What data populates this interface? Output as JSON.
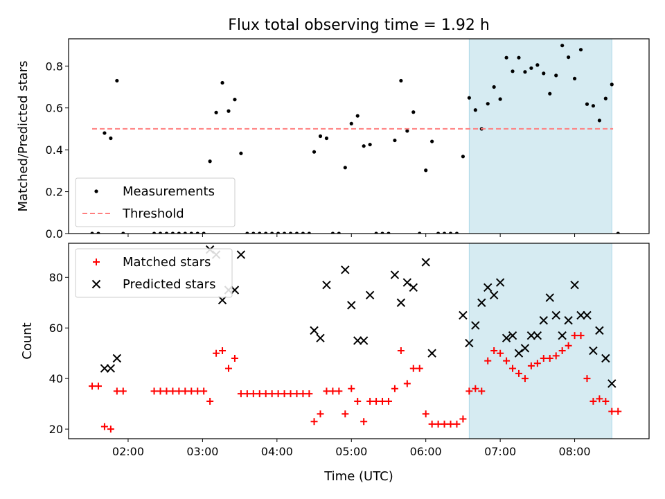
{
  "chart_data": [
    {
      "type": "scatter",
      "title": "Flux total observing time = 1.92 h",
      "xlabel": "",
      "ylabel": "Matched/Predicted stars",
      "xlim": [
        "01:12",
        "09:00"
      ],
      "ylim": [
        0,
        0.93
      ],
      "yticks": [
        0.0,
        0.2,
        0.4,
        0.6,
        0.8
      ],
      "ytick_labels": [
        "0.0",
        "0.2",
        "0.4",
        "0.6",
        "0.8"
      ],
      "xticks": [
        "02:00",
        "03:00",
        "04:00",
        "05:00",
        "06:00",
        "07:00",
        "08:00"
      ],
      "highlight_span": {
        "from": "06:35",
        "to": "08:30",
        "color": "#add8e6"
      },
      "legend": {
        "placement": "lower-left",
        "entries": [
          "Measurements",
          "Threshold"
        ]
      },
      "grid": false,
      "series": [
        {
          "name": "Measurements",
          "marker": "dot",
          "color": "#000000",
          "points": [
            [
              "01:31",
              0
            ],
            [
              "01:36",
              0
            ],
            [
              "01:41",
              0.48
            ],
            [
              "01:46",
              0.455
            ],
            [
              "01:51",
              0.73
            ],
            [
              "01:56",
              0
            ],
            [
              "02:21",
              0
            ],
            [
              "02:26",
              0
            ],
            [
              "02:31",
              0
            ],
            [
              "02:36",
              0
            ],
            [
              "02:41",
              0
            ],
            [
              "02:46",
              0
            ],
            [
              "02:51",
              0
            ],
            [
              "02:56",
              0
            ],
            [
              "03:01",
              0
            ],
            [
              "03:06",
              0.345
            ],
            [
              "03:11",
              0.578
            ],
            [
              "03:16",
              0.72
            ],
            [
              "03:21",
              0.585
            ],
            [
              "03:26",
              0.64
            ],
            [
              "03:31",
              0.383
            ],
            [
              "03:36",
              0
            ],
            [
              "03:41",
              0
            ],
            [
              "03:46",
              0
            ],
            [
              "03:51",
              0
            ],
            [
              "03:56",
              0
            ],
            [
              "04:01",
              0
            ],
            [
              "04:06",
              0
            ],
            [
              "04:11",
              0
            ],
            [
              "04:16",
              0
            ],
            [
              "04:21",
              0
            ],
            [
              "04:26",
              0
            ],
            [
              "04:30",
              0.39
            ],
            [
              "04:35",
              0.465
            ],
            [
              "04:40",
              0.455
            ],
            [
              "04:45",
              0
            ],
            [
              "04:50",
              0
            ],
            [
              "04:55",
              0.315
            ],
            [
              "05:00",
              0.525
            ],
            [
              "05:05",
              0.562
            ],
            [
              "05:10",
              0.418
            ],
            [
              "05:15",
              0.425
            ],
            [
              "05:20",
              0
            ],
            [
              "05:25",
              0
            ],
            [
              "05:30",
              0
            ],
            [
              "05:35",
              0.445
            ],
            [
              "05:40",
              0.73
            ],
            [
              "05:45",
              0.49
            ],
            [
              "05:50",
              0.58
            ],
            [
              "05:55",
              0
            ],
            [
              "06:00",
              0.302
            ],
            [
              "06:05",
              0.44
            ],
            [
              "06:10",
              0
            ],
            [
              "06:15",
              0
            ],
            [
              "06:20",
              0
            ],
            [
              "06:25",
              0
            ],
            [
              "06:30",
              0.368
            ],
            [
              "06:35",
              0.648
            ],
            [
              "06:40",
              0.59
            ],
            [
              "06:45",
              0.5
            ],
            [
              "06:50",
              0.62
            ],
            [
              "06:55",
              0.7
            ],
            [
              "07:00",
              0.642
            ],
            [
              "07:05",
              0.84
            ],
            [
              "07:10",
              0.775
            ],
            [
              "07:15",
              0.84
            ],
            [
              "07:20",
              0.772
            ],
            [
              "07:25",
              0.79
            ],
            [
              "07:30",
              0.805
            ],
            [
              "07:35",
              0.765
            ],
            [
              "07:40",
              0.668
            ],
            [
              "07:45",
              0.755
            ],
            [
              "07:50",
              0.898
            ],
            [
              "07:55",
              0.842
            ],
            [
              "08:00",
              0.74
            ],
            [
              "08:05",
              0.878
            ],
            [
              "08:10",
              0.618
            ],
            [
              "08:15",
              0.61
            ],
            [
              "08:20",
              0.54
            ],
            [
              "08:25",
              0.645
            ],
            [
              "08:30",
              0.712
            ],
            [
              "08:35",
              0
            ]
          ]
        },
        {
          "name": "Threshold",
          "style": "dashed",
          "color": "#ff7f7f",
          "points": [
            [
              "01:31",
              0.5
            ],
            [
              "08:31",
              0.5
            ]
          ]
        }
      ]
    },
    {
      "type": "scatter",
      "title": "",
      "xlabel": "Time (UTC)",
      "ylabel": "Count",
      "xlim": [
        "01:12",
        "09:00"
      ],
      "ylim": [
        16.2,
        93.5
      ],
      "yticks": [
        20,
        40,
        60,
        80
      ],
      "ytick_labels": [
        "20",
        "40",
        "60",
        "80"
      ],
      "xticks": [
        "02:00",
        "03:00",
        "04:00",
        "05:00",
        "06:00",
        "07:00",
        "08:00"
      ],
      "highlight_span": {
        "from": "06:35",
        "to": "08:30",
        "color": "#add8e6"
      },
      "legend": {
        "placement": "upper-left",
        "entries": [
          "Matched stars",
          "Predicted stars"
        ]
      },
      "grid": false,
      "series": [
        {
          "name": "Matched stars",
          "marker": "plus",
          "color": "#ff0000",
          "points": [
            [
              "01:31",
              37
            ],
            [
              "01:36",
              37
            ],
            [
              "01:41",
              21
            ],
            [
              "01:46",
              20
            ],
            [
              "01:51",
              35
            ],
            [
              "01:56",
              35
            ],
            [
              "02:21",
              35
            ],
            [
              "02:26",
              35
            ],
            [
              "02:31",
              35
            ],
            [
              "02:36",
              35
            ],
            [
              "02:41",
              35
            ],
            [
              "02:46",
              35
            ],
            [
              "02:51",
              35
            ],
            [
              "02:56",
              35
            ],
            [
              "03:01",
              35
            ],
            [
              "03:06",
              31
            ],
            [
              "03:11",
              50
            ],
            [
              "03:16",
              51
            ],
            [
              "03:21",
              44
            ],
            [
              "03:26",
              48
            ],
            [
              "03:31",
              34
            ],
            [
              "03:36",
              34
            ],
            [
              "03:41",
              34
            ],
            [
              "03:46",
              34
            ],
            [
              "03:51",
              34
            ],
            [
              "03:56",
              34
            ],
            [
              "04:01",
              34
            ],
            [
              "04:06",
              34
            ],
            [
              "04:11",
              34
            ],
            [
              "04:16",
              34
            ],
            [
              "04:21",
              34
            ],
            [
              "04:26",
              34
            ],
            [
              "04:30",
              23
            ],
            [
              "04:35",
              26
            ],
            [
              "04:40",
              35
            ],
            [
              "04:45",
              35
            ],
            [
              "04:50",
              35
            ],
            [
              "04:55",
              26
            ],
            [
              "05:00",
              36
            ],
            [
              "05:05",
              31
            ],
            [
              "05:10",
              23
            ],
            [
              "05:15",
              31
            ],
            [
              "05:20",
              31
            ],
            [
              "05:25",
              31
            ],
            [
              "05:30",
              31
            ],
            [
              "05:35",
              36
            ],
            [
              "05:40",
              51
            ],
            [
              "05:45",
              38
            ],
            [
              "05:50",
              44
            ],
            [
              "05:55",
              44
            ],
            [
              "06:00",
              26
            ],
            [
              "06:05",
              22
            ],
            [
              "06:10",
              22
            ],
            [
              "06:15",
              22
            ],
            [
              "06:20",
              22
            ],
            [
              "06:25",
              22
            ],
            [
              "06:30",
              24
            ],
            [
              "06:35",
              35
            ],
            [
              "06:40",
              36
            ],
            [
              "06:45",
              35
            ],
            [
              "06:50",
              47
            ],
            [
              "06:55",
              51
            ],
            [
              "07:00",
              50
            ],
            [
              "07:05",
              47
            ],
            [
              "07:10",
              44
            ],
            [
              "07:15",
              42
            ],
            [
              "07:20",
              40
            ],
            [
              "07:25",
              45
            ],
            [
              "07:30",
              46
            ],
            [
              "07:35",
              48
            ],
            [
              "07:40",
              48
            ],
            [
              "07:45",
              49
            ],
            [
              "07:50",
              51
            ],
            [
              "07:55",
              53
            ],
            [
              "08:00",
              57
            ],
            [
              "08:05",
              57
            ],
            [
              "08:10",
              40
            ],
            [
              "08:15",
              31
            ],
            [
              "08:20",
              32
            ],
            [
              "08:25",
              31
            ],
            [
              "08:30",
              27
            ],
            [
              "08:35",
              27
            ]
          ]
        },
        {
          "name": "Predicted stars",
          "marker": "x",
          "color": "#000000",
          "points": [
            [
              "01:41",
              44
            ],
            [
              "01:46",
              44
            ],
            [
              "01:51",
              48
            ],
            [
              "03:06",
              91
            ],
            [
              "03:11",
              89
            ],
            [
              "03:16",
              71
            ],
            [
              "03:21",
              75
            ],
            [
              "03:26",
              75
            ],
            [
              "03:31",
              89
            ],
            [
              "04:30",
              59
            ],
            [
              "04:35",
              56
            ],
            [
              "04:40",
              77
            ],
            [
              "04:55",
              83
            ],
            [
              "05:00",
              69
            ],
            [
              "05:05",
              55
            ],
            [
              "05:10",
              55
            ],
            [
              "05:15",
              73
            ],
            [
              "05:35",
              81
            ],
            [
              "05:40",
              70
            ],
            [
              "05:45",
              78
            ],
            [
              "05:50",
              76
            ],
            [
              "06:00",
              86
            ],
            [
              "06:05",
              50
            ],
            [
              "06:30",
              65
            ],
            [
              "06:35",
              54
            ],
            [
              "06:40",
              61
            ],
            [
              "06:45",
              70
            ],
            [
              "06:50",
              76
            ],
            [
              "06:55",
              73
            ],
            [
              "07:00",
              78
            ],
            [
              "07:05",
              56
            ],
            [
              "07:10",
              57
            ],
            [
              "07:15",
              50
            ],
            [
              "07:20",
              52
            ],
            [
              "07:25",
              57
            ],
            [
              "07:30",
              57
            ],
            [
              "07:35",
              63
            ],
            [
              "07:40",
              72
            ],
            [
              "07:45",
              65
            ],
            [
              "07:50",
              57
            ],
            [
              "07:55",
              63
            ],
            [
              "08:00",
              77
            ],
            [
              "08:05",
              65
            ],
            [
              "08:10",
              65
            ],
            [
              "08:15",
              51
            ],
            [
              "08:20",
              59
            ],
            [
              "08:25",
              48
            ],
            [
              "08:30",
              38
            ]
          ]
        }
      ]
    }
  ]
}
